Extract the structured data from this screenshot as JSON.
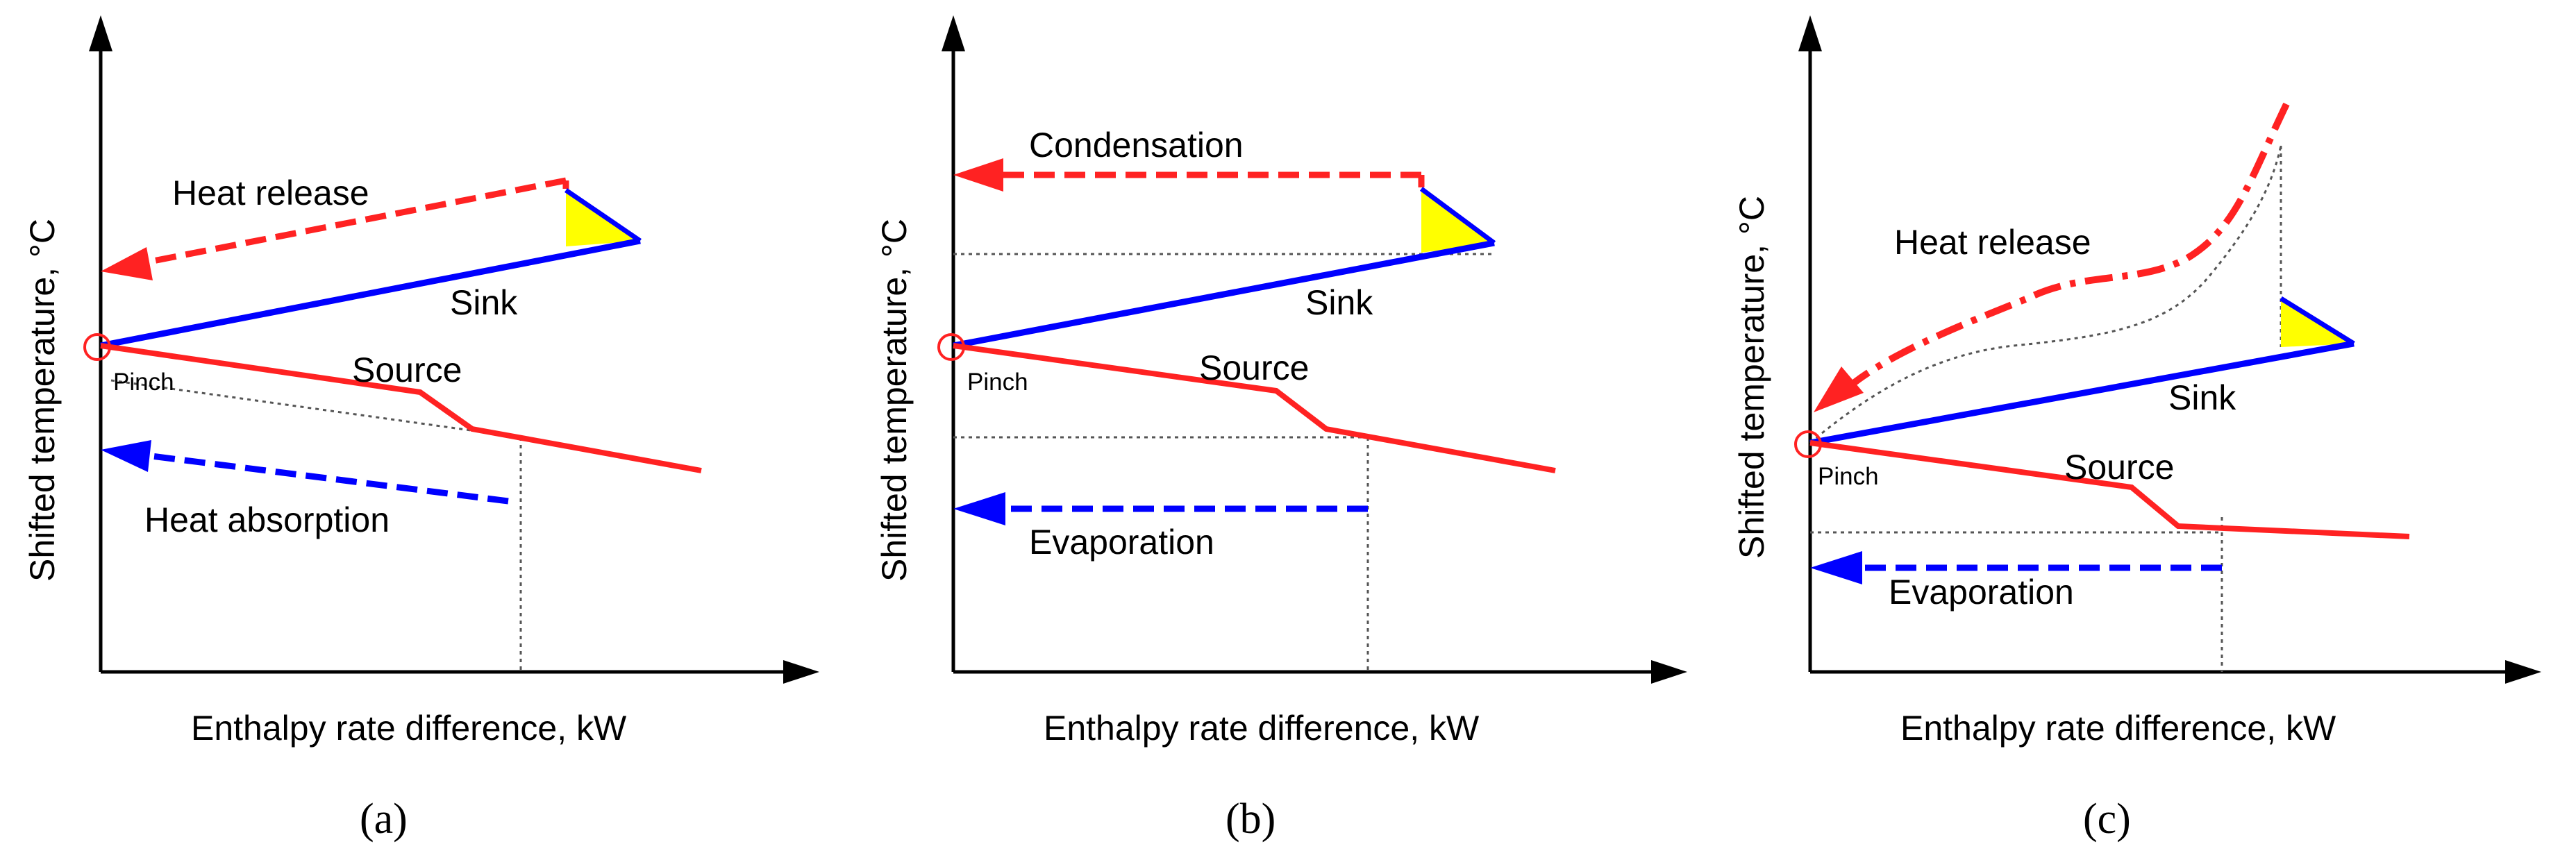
{
  "figure": {
    "panels": [
      {
        "id": "a",
        "caption": "(a)",
        "axes": {
          "xlabel": "Enthalpy rate difference, kW",
          "ylabel": "Shifted temperature, °C"
        },
        "curves": {
          "sink": "Sink",
          "source": "Source",
          "pinch": "Pinch"
        },
        "annotations": {
          "hot_side": "Heat release",
          "cold_side": "Heat absorption"
        }
      },
      {
        "id": "b",
        "caption": "(b)",
        "axes": {
          "xlabel": "Enthalpy rate difference, kW",
          "ylabel": "Shifted temperature, °C"
        },
        "curves": {
          "sink": "Sink",
          "source": "Source",
          "pinch": "Pinch"
        },
        "annotations": {
          "hot_side": "Condensation",
          "cold_side": "Evaporation"
        }
      },
      {
        "id": "c",
        "caption": "(c)",
        "axes": {
          "xlabel": "Enthalpy rate difference, kW",
          "ylabel": "Shifted temperature, °C"
        },
        "curves": {
          "sink": "Sink",
          "source": "Source",
          "pinch": "Pinch"
        },
        "annotations": {
          "hot_side": "Heat release",
          "cold_side": "Evaporation"
        }
      }
    ],
    "colors": {
      "sink": "#0000ff",
      "source": "#ff2222",
      "heat_pump_hot": "#ff2222",
      "heat_pump_cold": "#0000ff",
      "subcooling_triangle": "#ffff00",
      "guide": "#555555",
      "axis": "#000000"
    }
  }
}
